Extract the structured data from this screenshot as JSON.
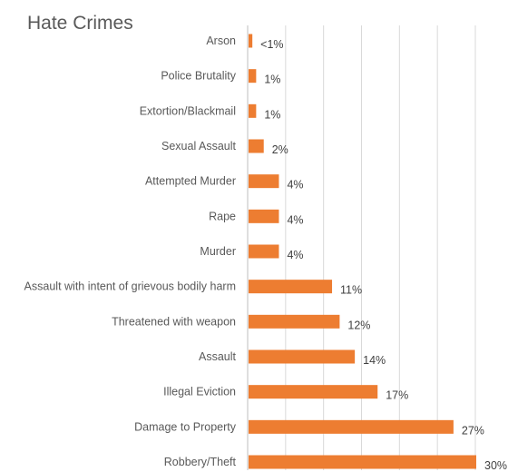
{
  "chart_data": {
    "type": "bar",
    "orientation": "horizontal",
    "title": "Hate Crimes",
    "xlabel": "",
    "ylabel": "",
    "xlim": [
      0,
      30
    ],
    "grid": true,
    "bar_color": "#ed7d31",
    "categories": [
      "Arson",
      "Police Brutality",
      "Extortion/Blackmail",
      "Sexual Assault",
      "Attempted Murder",
      "Rape",
      "Murder",
      "Assault with intent of grievous bodily harm",
      "Threatened with weapon",
      "Assault",
      "Illegal Eviction",
      "Damage to Property",
      "Robbery/Theft"
    ],
    "values": [
      0.5,
      1,
      1,
      2,
      4,
      4,
      4,
      11,
      12,
      14,
      17,
      27,
      30
    ],
    "value_labels": [
      "<1%",
      "1%",
      "1%",
      "2%",
      "4%",
      "4%",
      "4%",
      "11%",
      "12%",
      "14%",
      "17%",
      "27%",
      "30%"
    ]
  }
}
